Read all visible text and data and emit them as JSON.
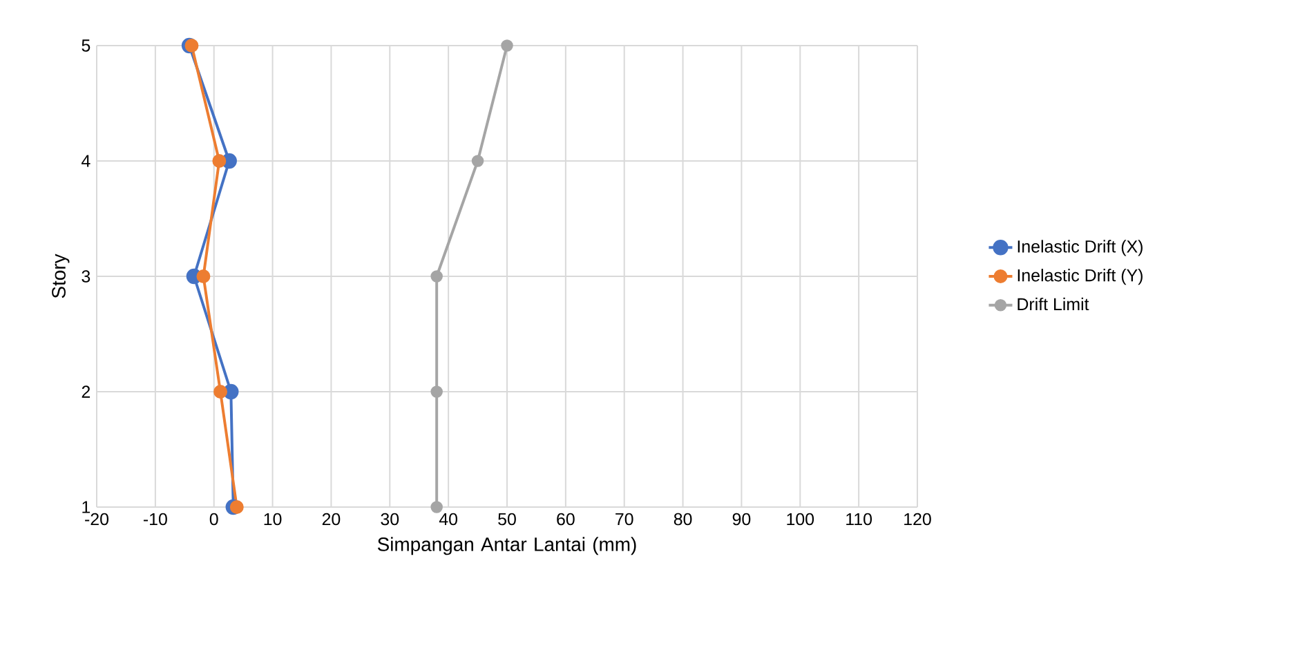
{
  "chart_data": {
    "type": "line",
    "xlabel": "Simpangan Antar Lantai (mm)",
    "ylabel": "Story",
    "xlim": [
      -20,
      120
    ],
    "xticks": [
      -20,
      -10,
      0,
      10,
      20,
      30,
      40,
      50,
      60,
      70,
      80,
      90,
      100,
      110,
      120
    ],
    "ylim": [
      1,
      5
    ],
    "yticks": [
      1,
      2,
      3,
      4,
      5
    ],
    "grid": true,
    "legend": "right",
    "marker": "circle",
    "line_style": "solid",
    "series": [
      {
        "name": "Inelastic Drift (X)",
        "color": "#4472c4",
        "x": [
          -4.2,
          2.6,
          -3.4,
          2.9,
          3.3
        ],
        "values": [
          5,
          4,
          3,
          2,
          1
        ]
      },
      {
        "name": "Inelastic Drift (Y)",
        "color": "#ed7d31",
        "x": [
          -3.8,
          0.9,
          -1.8,
          1.1,
          3.9
        ],
        "values": [
          5,
          4,
          3,
          2,
          1
        ]
      },
      {
        "name": "Drift Limit",
        "color": "#a5a5a5",
        "x": [
          50,
          45,
          38,
          38,
          38
        ],
        "values": [
          5,
          4,
          3,
          2,
          1
        ]
      }
    ]
  }
}
